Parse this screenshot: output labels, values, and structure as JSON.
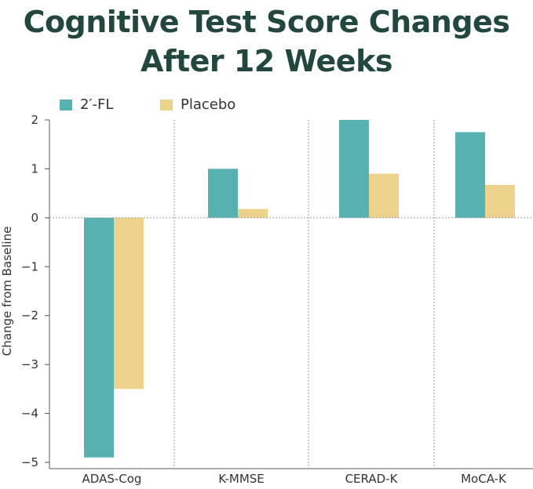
{
  "chart_data": {
    "type": "bar",
    "title_lines": [
      "Cognitive Test Score Changes",
      "After 12 Weeks"
    ],
    "xlabel": "",
    "ylabel": "Change from Baseline",
    "ylim": [
      -5,
      2
    ],
    "yticks": [
      "2",
      "1",
      "0",
      "−1",
      "−2",
      "−3",
      "−4",
      "−5"
    ],
    "ytick_values": [
      2,
      1,
      0,
      -1,
      -2,
      -3,
      -4,
      -5
    ],
    "categories": [
      "ADAS-Cog",
      "K-MMSE",
      "CERAD-K",
      "MoCA-K"
    ],
    "series": [
      {
        "name": "2′-FL",
        "color": "#56b1b1",
        "values": [
          -4.9,
          1.0,
          2.0,
          1.75
        ]
      },
      {
        "name": "Placebo",
        "color": "#ecd28a",
        "values": [
          -3.5,
          0.18,
          0.9,
          0.67
        ]
      }
    ],
    "legend_position": "top-left",
    "grid": "vertical-dotted"
  }
}
